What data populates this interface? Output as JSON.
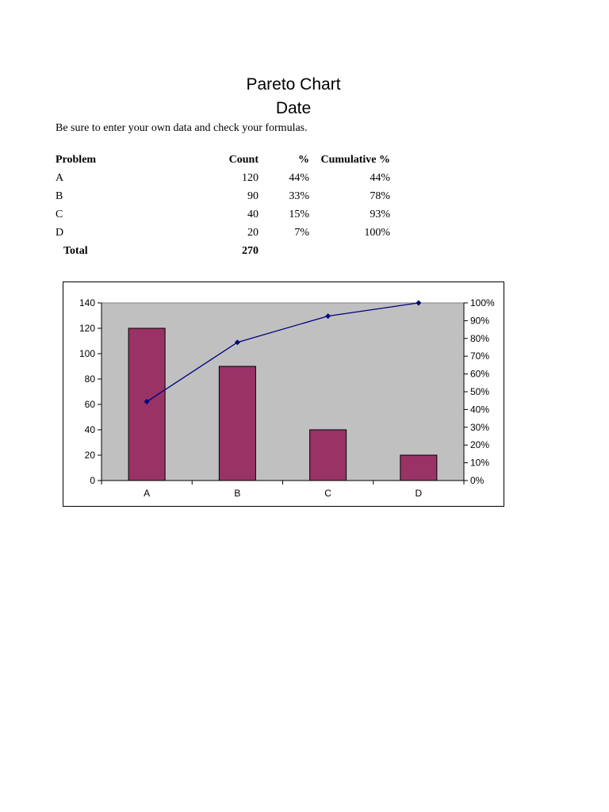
{
  "header": {
    "title": "Pareto Chart",
    "subtitle": "Date"
  },
  "note": "Be sure to enter your own data and check your formulas.",
  "table": {
    "headers": {
      "problem": "Problem",
      "count": "Count",
      "pct": "%",
      "cum": "Cumulative %"
    },
    "rows": [
      {
        "problem": "A",
        "count": "120",
        "pct": "44%",
        "cum": "44%"
      },
      {
        "problem": "B",
        "count": "90",
        "pct": "33%",
        "cum": "78%"
      },
      {
        "problem": "C",
        "count": "40",
        "pct": "15%",
        "cum": "93%"
      },
      {
        "problem": "D",
        "count": "20",
        "pct": "7%",
        "cum": "100%"
      }
    ],
    "total": {
      "label": "Total",
      "count": "270"
    }
  },
  "chart_data": {
    "type": "bar",
    "categories": [
      "A",
      "B",
      "C",
      "D"
    ],
    "series": [
      {
        "type": "bar",
        "values": [
          120,
          90,
          40,
          20
        ],
        "axis": "left",
        "color": "#993366"
      },
      {
        "type": "line",
        "values": [
          44.4,
          77.8,
          92.6,
          100
        ],
        "axis": "right",
        "color": "#000080"
      }
    ],
    "ylim": [
      0,
      140
    ],
    "yticks": [
      "0",
      "20",
      "40",
      "60",
      "80",
      "100",
      "120",
      "140"
    ],
    "y2lim": [
      0,
      100
    ],
    "y2ticks": [
      "0%",
      "10%",
      "20%",
      "30%",
      "40%",
      "50%",
      "60%",
      "70%",
      "80%",
      "90%",
      "100%"
    ],
    "plot_background": "#c0c0c0",
    "grid": false,
    "legend": "none"
  }
}
